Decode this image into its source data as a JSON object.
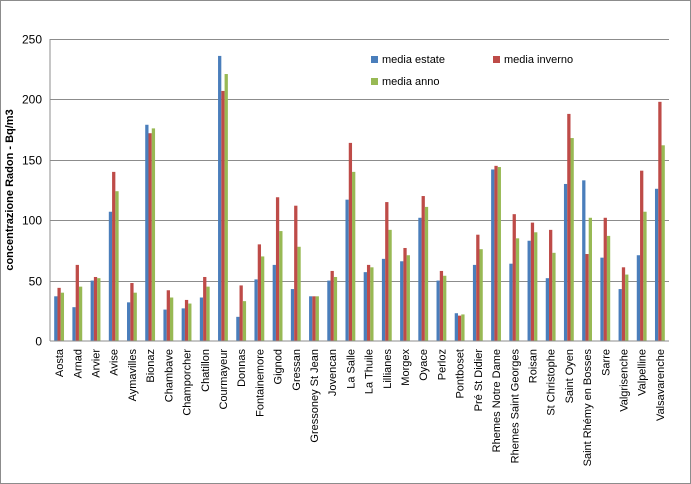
{
  "chart_data": {
    "type": "bar",
    "title": "",
    "xlabel": "",
    "ylabel": "concentrazione Radon - Bq/m3",
    "ylim": [
      0,
      250
    ],
    "ytick_step": 50,
    "grid": true,
    "legend_position": "top-right",
    "categories": [
      "Aosta",
      "Arnad",
      "Arvier",
      "Avise",
      "Aymavilles",
      "Bionaz",
      "Chambave",
      "Champorcher",
      "Chatillon",
      "Courmayeur",
      "Donnas",
      "Fontainemore",
      "Gignod",
      "Gressan",
      "Gressoney St Jean",
      "Jovencan",
      "La Salle",
      "La Thuile",
      "Lillianes",
      "Morgex",
      "Oyace",
      "Perloz",
      "Pontboset",
      "Pré St Didier",
      "Rhemes Notre Dame",
      "Rhemes Saint Georges",
      "Roisan",
      "St Christophe",
      "Saint Oyen",
      "Saint Rhémy en Bosses",
      "Sarre",
      "Valgrisenche",
      "Valpelline",
      "Valsavarenche"
    ],
    "series": [
      {
        "name": "media estate",
        "color": "#4a7ebb",
        "values": [
          37,
          28,
          50,
          107,
          32,
          179,
          26,
          27,
          36,
          236,
          20,
          51,
          63,
          43,
          37,
          50,
          117,
          57,
          68,
          66,
          102,
          50,
          23,
          63,
          142,
          64,
          83,
          52,
          130,
          133,
          69,
          43,
          71,
          126
        ]
      },
      {
        "name": "media inverno",
        "color": "#be4b48",
        "values": [
          44,
          63,
          53,
          140,
          48,
          172,
          42,
          34,
          53,
          207,
          46,
          80,
          119,
          112,
          37,
          58,
          164,
          63,
          115,
          77,
          120,
          58,
          21,
          88,
          145,
          105,
          98,
          92,
          188,
          72,
          102,
          61,
          141,
          198
        ]
      },
      {
        "name": "media anno",
        "color": "#98b954",
        "values": [
          40,
          45,
          52,
          124,
          40,
          176,
          36,
          31,
          45,
          221,
          33,
          70,
          91,
          78,
          37,
          53,
          140,
          61,
          92,
          71,
          111,
          54,
          22,
          76,
          144,
          85,
          90,
          73,
          168,
          102,
          87,
          55,
          107,
          162
        ]
      }
    ]
  }
}
